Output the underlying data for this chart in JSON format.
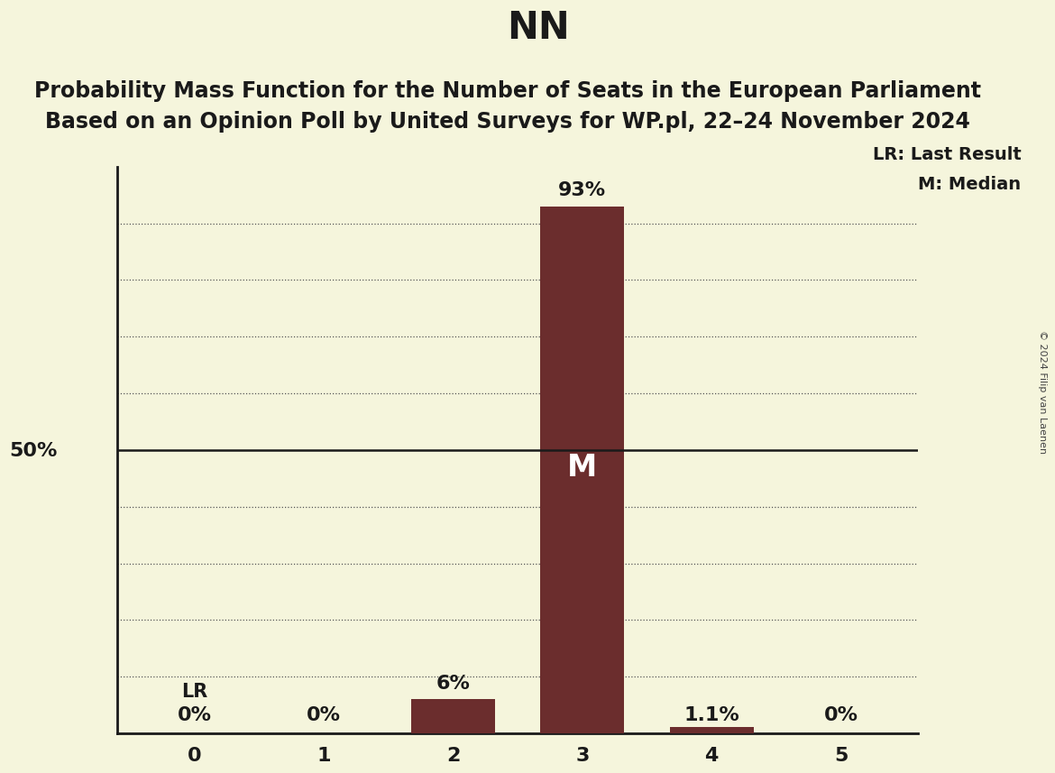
{
  "title": "NN",
  "subtitle_line1": "Probability Mass Function for the Number of Seats in the European Parliament",
  "subtitle_line2": "Based on an Opinion Poll by United Surveys for WP.pl, 22–24 November 2024",
  "categories": [
    0,
    1,
    2,
    3,
    4,
    5
  ],
  "values": [
    0.0,
    0.0,
    0.06,
    0.93,
    0.011,
    0.0
  ],
  "bar_color": "#6B2D2D",
  "background_color": "#F5F5DC",
  "bar_labels": [
    "0%",
    "0%",
    "6%",
    "93%",
    "1.1%",
    "0%"
  ],
  "median_bar": 3,
  "last_result_bar": 0,
  "median_label": "M",
  "lr_label": "LR",
  "legend_lr": "LR: Last Result",
  "legend_m": "M: Median",
  "ylabel_50": "50%",
  "ylim": [
    0,
    1.0
  ],
  "copyright": "© 2024 Filip van Laenen",
  "title_fontsize": 30,
  "subtitle_fontsize": 17,
  "bar_label_fontsize": 16,
  "median_label_fontsize": 24,
  "lr_label_fontsize": 15,
  "tick_fontsize": 16,
  "legend_fontsize": 14,
  "axis_color": "#1a1a1a",
  "hline_50_color": "#1a1a1a",
  "grid_color": "#555555",
  "text_color": "#1a1a1a"
}
